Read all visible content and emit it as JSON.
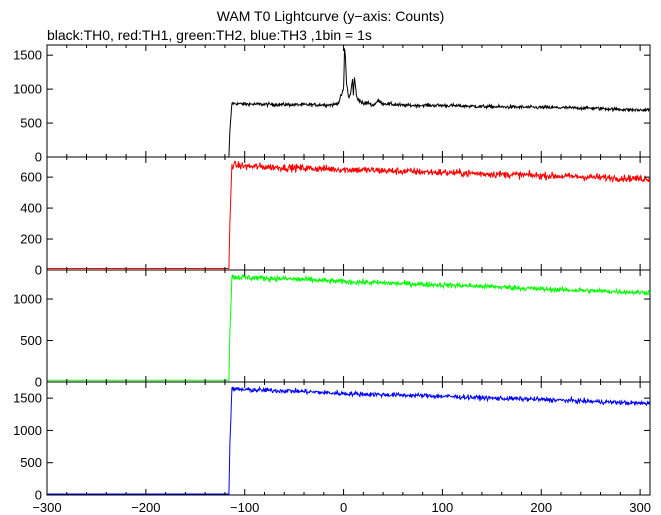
{
  "chart_data": {
    "type": "line",
    "title": "WAM T0 Lightcurve (y−axis: Counts)",
    "subtitle": "black:TH0, red:TH1, green:TH2, blue:TH3 ,1bin = 1s",
    "xlabel": "",
    "ylabel": "",
    "xlim": [
      -300,
      310
    ],
    "x_ticks": [
      -300,
      -200,
      -100,
      0,
      100,
      200,
      300
    ],
    "x_tick_labels": [
      "−300",
      "−200",
      "−100",
      "0",
      "100",
      "200",
      "300"
    ],
    "grid": false,
    "panels": [
      {
        "name": "TH0",
        "color": "#000000",
        "ylim": [
          0,
          1650
        ],
        "y_ticks": [
          0,
          500,
          1000,
          1500
        ],
        "x": [
          -300,
          -116,
          -115,
          -113,
          -100,
          -50,
          -10,
          -5,
          0,
          1,
          2,
          3,
          5,
          7,
          9,
          10,
          11,
          12,
          13,
          14,
          16,
          20,
          25,
          30,
          35,
          40,
          60,
          100,
          150,
          200,
          250,
          300,
          310
        ],
        "y": [
          0,
          0,
          380,
          790,
          780,
          770,
          770,
          800,
          1000,
          1600,
          1450,
          1100,
          880,
          920,
          1150,
          900,
          1200,
          1050,
          900,
          860,
          840,
          780,
          800,
          760,
          830,
          790,
          760,
          760,
          740,
          730,
          720,
          690,
          700
        ]
      },
      {
        "name": "TH1",
        "color": "#ff0000",
        "ylim": [
          0,
          730
        ],
        "y_ticks": [
          0,
          200,
          400,
          600
        ],
        "x": [
          -300,
          -116,
          -115,
          -113,
          -100,
          -50,
          0,
          50,
          100,
          150,
          200,
          250,
          300,
          310
        ],
        "y": [
          10,
          10,
          300,
          680,
          670,
          660,
          650,
          640,
          630,
          620,
          610,
          600,
          590,
          590
        ]
      },
      {
        "name": "TH2",
        "color": "#00ff00",
        "ylim": [
          0,
          1350
        ],
        "y_ticks": [
          0,
          500,
          1000
        ],
        "x": [
          -300,
          -116,
          -115,
          -113,
          -100,
          -50,
          0,
          50,
          100,
          150,
          200,
          250,
          300,
          310
        ],
        "y": [
          20,
          20,
          600,
          1270,
          1260,
          1240,
          1210,
          1190,
          1170,
          1150,
          1120,
          1100,
          1080,
          1080
        ]
      },
      {
        "name": "TH3",
        "color": "#0000ff",
        "ylim": [
          0,
          1750
        ],
        "y_ticks": [
          0,
          500,
          1000,
          1500
        ],
        "x": [
          -300,
          -116,
          -115,
          -113,
          -100,
          -50,
          0,
          50,
          100,
          150,
          200,
          250,
          300,
          310
        ],
        "y": [
          15,
          15,
          800,
          1640,
          1630,
          1610,
          1570,
          1550,
          1530,
          1500,
          1480,
          1450,
          1420,
          1420
        ]
      }
    ]
  }
}
